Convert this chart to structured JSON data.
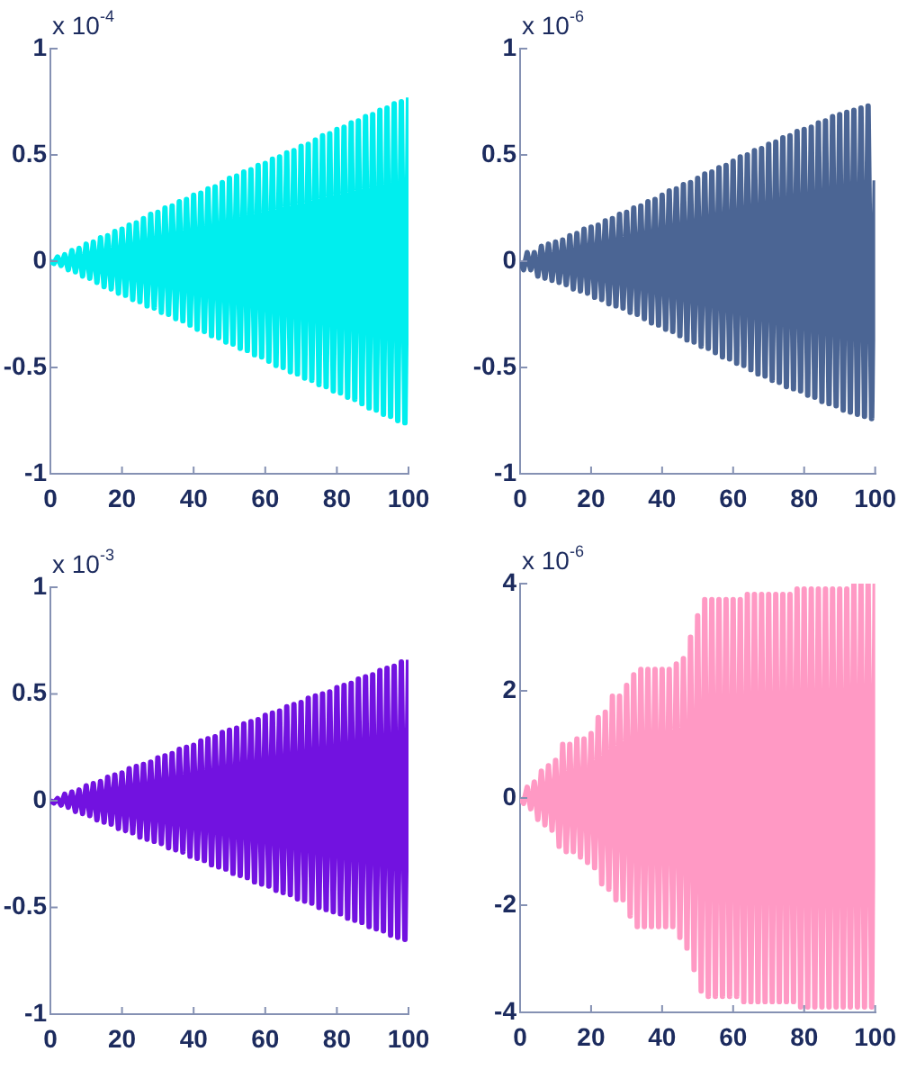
{
  "chart_data": [
    {
      "type": "line",
      "marker": "none",
      "xlim": [
        0,
        100
      ],
      "xticks": [
        0,
        20,
        40,
        60,
        80,
        100
      ],
      "ylim": [
        -1,
        1
      ],
      "yticks": [
        -1,
        -0.5,
        0,
        0.5,
        1
      ],
      "annotations": [
        "x 10$^{-4}$"
      ],
      "x": [
        0,
        1,
        2,
        3,
        4,
        5,
        6,
        7,
        8,
        9,
        10,
        11,
        12,
        13,
        14,
        15,
        16,
        17,
        18,
        19,
        20,
        21,
        22,
        23,
        24,
        25,
        26,
        27,
        28,
        29,
        30,
        31,
        32,
        33,
        34,
        35,
        36,
        37,
        38,
        39,
        40,
        41,
        42,
        43,
        44,
        45,
        46,
        47,
        48,
        49,
        50,
        51,
        52,
        53,
        54,
        55,
        56,
        57,
        58,
        59,
        60,
        61,
        62,
        63,
        64,
        65,
        66,
        67,
        68,
        69,
        70,
        71,
        72,
        73,
        74,
        75,
        76,
        77,
        78,
        79,
        80,
        81,
        82,
        83,
        84,
        85,
        86,
        87,
        88,
        89,
        90,
        91,
        92,
        93,
        94,
        95,
        96,
        97,
        98,
        99,
        100
      ],
      "series": [
        {
          "color": "#00eeee",
          "values": [
            0,
            -0.01,
            0.02,
            -0.02,
            0.03,
            -0.04,
            0.05,
            -0.05,
            0.06,
            -0.07,
            0.08,
            -0.08,
            0.09,
            -0.1,
            0.11,
            -0.12,
            0.12,
            -0.13,
            0.14,
            -0.15,
            0.15,
            -0.16,
            0.17,
            -0.18,
            0.18,
            -0.19,
            0.2,
            -0.21,
            0.22,
            -0.22,
            0.23,
            -0.24,
            0.25,
            -0.25,
            0.26,
            -0.27,
            0.28,
            -0.28,
            0.29,
            -0.3,
            0.31,
            -0.32,
            0.32,
            -0.33,
            0.34,
            -0.35,
            0.35,
            -0.36,
            0.37,
            -0.38,
            0.39,
            -0.39,
            0.4,
            -0.41,
            0.42,
            -0.42,
            0.43,
            -0.44,
            0.45,
            -0.45,
            0.46,
            -0.47,
            0.48,
            -0.49,
            0.49,
            -0.5,
            0.51,
            -0.52,
            0.52,
            -0.53,
            0.54,
            -0.55,
            0.55,
            -0.56,
            0.57,
            -0.58,
            0.59,
            -0.59,
            0.6,
            -0.61,
            0.62,
            -0.62,
            0.63,
            -0.64,
            0.65,
            -0.65,
            0.66,
            -0.67,
            0.68,
            -0.69,
            0.69,
            -0.7,
            0.71,
            -0.72,
            0.72,
            -0.73,
            0.74,
            -0.75,
            0.75,
            -0.76,
            0.77
          ]
        }
      ]
    },
    {
      "type": "line",
      "marker": "none",
      "xlim": [
        0,
        100
      ],
      "xticks": [
        0,
        20,
        40,
        60,
        80,
        100
      ],
      "ylim": [
        -1,
        1
      ],
      "yticks": [
        -1,
        -0.5,
        0,
        0.5,
        1
      ],
      "annotations": [
        "x 10$^{-6}$"
      ],
      "x": [
        0,
        1,
        2,
        3,
        4,
        5,
        6,
        7,
        8,
        9,
        10,
        11,
        12,
        13,
        14,
        15,
        16,
        17,
        18,
        19,
        20,
        21,
        22,
        23,
        24,
        25,
        26,
        27,
        28,
        29,
        30,
        31,
        32,
        33,
        34,
        35,
        36,
        37,
        38,
        39,
        40,
        41,
        42,
        43,
        44,
        45,
        46,
        47,
        48,
        49,
        50,
        51,
        52,
        53,
        54,
        55,
        56,
        57,
        58,
        59,
        60,
        61,
        62,
        63,
        64,
        65,
        66,
        67,
        68,
        69,
        70,
        71,
        72,
        73,
        74,
        75,
        76,
        77,
        78,
        79,
        80,
        81,
        82,
        83,
        84,
        85,
        86,
        87,
        88,
        89,
        90,
        91,
        92,
        93,
        94,
        95,
        96,
        97,
        98,
        99,
        100
      ],
      "series": [
        {
          "color": "#4b6594",
          "values": [
            0,
            -0.04,
            0.04,
            -0.04,
            0.04,
            -0.07,
            0.07,
            -0.08,
            0.08,
            -0.09,
            0.09,
            -0.1,
            0.1,
            -0.11,
            0.12,
            -0.13,
            0.13,
            -0.14,
            0.15,
            -0.15,
            0.16,
            -0.17,
            0.17,
            -0.18,
            0.19,
            -0.2,
            0.2,
            -0.21,
            0.22,
            -0.22,
            0.23,
            -0.24,
            0.25,
            -0.25,
            0.26,
            -0.27,
            0.28,
            -0.29,
            0.29,
            -0.3,
            0.31,
            -0.32,
            0.33,
            -0.33,
            0.34,
            -0.35,
            0.36,
            -0.37,
            0.37,
            -0.38,
            0.39,
            -0.4,
            0.41,
            -0.41,
            0.42,
            -0.43,
            0.44,
            -0.45,
            0.45,
            -0.46,
            0.47,
            -0.48,
            0.49,
            -0.49,
            0.5,
            -0.51,
            0.52,
            -0.53,
            0.53,
            -0.54,
            0.55,
            -0.56,
            0.56,
            -0.57,
            0.58,
            -0.59,
            0.59,
            -0.6,
            0.61,
            -0.61,
            0.62,
            -0.63,
            0.63,
            -0.64,
            0.65,
            -0.66,
            0.66,
            -0.67,
            0.68,
            -0.68,
            0.69,
            -0.7,
            0.7,
            -0.71,
            0.71,
            -0.72,
            0.72,
            -0.73,
            0.73,
            -0.74,
            0.38
          ]
        }
      ]
    },
    {
      "type": "line",
      "marker": "none",
      "xlim": [
        0,
        100
      ],
      "xticks": [
        0,
        20,
        40,
        60,
        80,
        100
      ],
      "ylim": [
        -1,
        1
      ],
      "yticks": [
        -1,
        -0.5,
        0,
        0.5,
        1
      ],
      "annotations": [
        "x 10$^{-3}$"
      ],
      "x": [
        0,
        1,
        2,
        3,
        4,
        5,
        6,
        7,
        8,
        9,
        10,
        11,
        12,
        13,
        14,
        15,
        16,
        17,
        18,
        19,
        20,
        21,
        22,
        23,
        24,
        25,
        26,
        27,
        28,
        29,
        30,
        31,
        32,
        33,
        34,
        35,
        36,
        37,
        38,
        39,
        40,
        41,
        42,
        43,
        44,
        45,
        46,
        47,
        48,
        49,
        50,
        51,
        52,
        53,
        54,
        55,
        56,
        57,
        58,
        59,
        60,
        61,
        62,
        63,
        64,
        65,
        66,
        67,
        68,
        69,
        70,
        71,
        72,
        73,
        74,
        75,
        76,
        77,
        78,
        79,
        80,
        81,
        82,
        83,
        84,
        85,
        86,
        87,
        88,
        89,
        90,
        91,
        92,
        93,
        94,
        95,
        96,
        97,
        98,
        99,
        100
      ],
      "series": [
        {
          "color": "#7212e0",
          "values": [
            0,
            -0.01,
            0.01,
            -0.02,
            0.03,
            -0.03,
            0.04,
            -0.05,
            0.05,
            -0.06,
            0.07,
            -0.07,
            0.08,
            -0.09,
            0.09,
            -0.1,
            0.11,
            -0.11,
            0.12,
            -0.13,
            0.13,
            -0.14,
            0.15,
            -0.15,
            0.16,
            -0.17,
            0.17,
            -0.18,
            0.18,
            -0.19,
            0.2,
            -0.2,
            0.21,
            -0.22,
            0.22,
            -0.23,
            0.24,
            -0.24,
            0.25,
            -0.26,
            0.26,
            -0.27,
            0.28,
            -0.28,
            0.29,
            -0.3,
            0.3,
            -0.31,
            0.32,
            -0.32,
            0.33,
            -0.34,
            0.34,
            -0.35,
            0.36,
            -0.36,
            0.37,
            -0.38,
            0.38,
            -0.39,
            0.4,
            -0.4,
            0.41,
            -0.42,
            0.42,
            -0.43,
            0.44,
            -0.44,
            0.45,
            -0.46,
            0.46,
            -0.47,
            0.48,
            -0.48,
            0.49,
            -0.5,
            0.5,
            -0.51,
            0.51,
            -0.52,
            0.53,
            -0.53,
            0.54,
            -0.55,
            0.55,
            -0.56,
            0.57,
            -0.57,
            0.58,
            -0.59,
            0.59,
            -0.6,
            0.61,
            -0.61,
            0.62,
            -0.63,
            0.63,
            -0.64,
            0.65,
            -0.65,
            0.66
          ]
        }
      ]
    },
    {
      "type": "line",
      "marker": "none",
      "xlim": [
        0,
        100
      ],
      "xticks": [
        0,
        20,
        40,
        60,
        80,
        100
      ],
      "ylim": [
        -4,
        4
      ],
      "yticks": [
        -4,
        -2,
        0,
        2,
        4
      ],
      "annotations": [
        "x 10$^{-6}$"
      ],
      "x": [
        0,
        1,
        2,
        3,
        4,
        5,
        6,
        7,
        8,
        9,
        10,
        11,
        12,
        13,
        14,
        15,
        16,
        17,
        18,
        19,
        20,
        21,
        22,
        23,
        24,
        25,
        26,
        27,
        28,
        29,
        30,
        31,
        32,
        33,
        34,
        35,
        36,
        37,
        38,
        39,
        40,
        41,
        42,
        43,
        44,
        45,
        46,
        47,
        48,
        49,
        50,
        51,
        52,
        53,
        54,
        55,
        56,
        57,
        58,
        59,
        60,
        61,
        62,
        63,
        64,
        65,
        66,
        67,
        68,
        69,
        70,
        71,
        72,
        73,
        74,
        75,
        76,
        77,
        78,
        79,
        80,
        81,
        82,
        83,
        84,
        85,
        86,
        87,
        88,
        89,
        90,
        91,
        92,
        93,
        94,
        95,
        96,
        97,
        98,
        99,
        100
      ],
      "series": [
        {
          "color": "#ff99c4",
          "values": [
            0,
            -0.1,
            0.2,
            -0.2,
            0.3,
            -0.4,
            0.5,
            -0.5,
            0.6,
            -0.6,
            0.7,
            -0.9,
            1.0,
            -1.0,
            1.0,
            -1.0,
            1.1,
            -1.1,
            1.1,
            -1.2,
            1.2,
            -1.3,
            1.5,
            -1.6,
            1.6,
            -1.7,
            1.9,
            -1.9,
            1.9,
            -1.9,
            2.1,
            -2.2,
            2.3,
            -2.4,
            2.4,
            -2.4,
            2.4,
            -2.4,
            2.4,
            -2.4,
            2.4,
            -2.4,
            2.4,
            -2.4,
            2.5,
            -2.6,
            2.6,
            -2.8,
            3.0,
            -3.2,
            3.4,
            -3.6,
            3.7,
            -3.7,
            3.7,
            -3.7,
            3.7,
            -3.7,
            3.7,
            -3.7,
            3.7,
            -3.7,
            3.7,
            -3.8,
            3.8,
            -3.8,
            3.8,
            -3.8,
            3.8,
            -3.8,
            3.8,
            -3.8,
            3.8,
            -3.8,
            3.8,
            -3.8,
            3.8,
            -3.8,
            3.9,
            -3.9,
            3.9,
            -3.9,
            3.9,
            -3.9,
            3.9,
            -3.9,
            3.9,
            -3.9,
            3.9,
            -3.9,
            3.9,
            -3.9,
            3.9,
            -3.9,
            4.0,
            -3.9,
            4.0,
            -3.9,
            4.0,
            -3.9,
            4.0
          ]
        }
      ]
    }
  ]
}
